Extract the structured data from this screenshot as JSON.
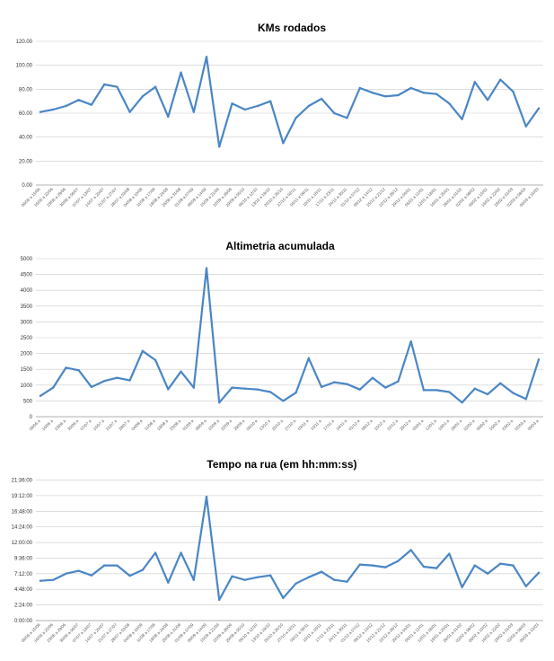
{
  "charts": [
    {
      "type": "line",
      "title": "KMs rodados",
      "y_format": "decimal2",
      "ylim": [
        0,
        120
      ],
      "y_ticks": [
        0,
        20,
        40,
        60,
        80,
        100,
        120
      ],
      "categories": [
        "09/06 a 15/06",
        "16/06 a 22/06",
        "23/06 a 29/06",
        "30/06 a 06/07",
        "07/07 a 13/07",
        "14/07 a 20/07",
        "21/07 a 27/07",
        "28/07 a 03/08",
        "04/08 a 10/08",
        "11/08 a 17/08",
        "18/08 a 24/08",
        "25/08 a 31/08",
        "01/09 a 07/09",
        "08/09 a 14/09",
        "15/09 a 21/09",
        "22/09 a 28/09",
        "29/09 a 05/10",
        "06/10 a 12/10",
        "13/10 a 19/10",
        "20/10 a 26/10",
        "27/10 a 02/11",
        "03/11 a 09/11",
        "10/11 a 16/11",
        "17/11 a 23/11",
        "24/11 a 30/11",
        "01/12 a 07/12",
        "08/12 a 14/12",
        "15/12 a 21/12",
        "22/12 a 28/12",
        "29/12 a 04/01",
        "05/01 a 11/01",
        "12/01 a 18/01",
        "19/01 a 25/01",
        "26/01 a 01/02",
        "02/02 a 08/02",
        "09/02 a 15/02",
        "16/02 a 22/02",
        "23/02 a 01/03",
        "02/03 a 08/03",
        "09/03 a 15/03"
      ],
      "values": [
        61,
        63,
        66,
        71,
        67,
        84,
        82,
        61,
        74,
        82,
        57,
        94,
        61,
        107,
        32,
        68,
        63,
        66,
        70,
        35,
        56,
        66,
        72,
        60,
        56,
        81,
        77,
        74,
        75,
        81,
        77,
        76,
        68,
        55,
        86,
        71,
        88,
        78,
        49,
        64
      ],
      "grid": true,
      "legend": "none",
      "color": "#4a86c5"
    },
    {
      "type": "line",
      "title": "Altimetria acumulada",
      "y_format": "integer",
      "ylim": [
        0,
        5000
      ],
      "y_ticks": [
        0,
        500,
        1000,
        1500,
        2000,
        2500,
        3000,
        3500,
        4000,
        4500,
        5000
      ],
      "categories": [
        "09/06 a",
        "16/06 a",
        "23/06 a",
        "30/06 a",
        "07/07 a",
        "14/07 a",
        "21/07 a",
        "28/07 a",
        "04/08 a",
        "11/08 a",
        "18/08 a",
        "25/08 a",
        "01/09 a",
        "08/09 a",
        "15/09 a",
        "22/09 a",
        "29/09 a",
        "06/10 a",
        "13/10 a",
        "20/10 a",
        "27/10 a",
        "03/11 a",
        "10/11 a",
        "17/11 a",
        "24/11 a",
        "01/12 a",
        "08/12 a",
        "15/12 a",
        "22/12 a",
        "29/12 a",
        "05/01 a",
        "12/01 a",
        "19/01 a",
        "26/01 a",
        "02/02 a",
        "09/02 a",
        "16/02 a",
        "23/02 a",
        "02/03 a",
        "09/03 a"
      ],
      "values": [
        660,
        920,
        1550,
        1470,
        940,
        1130,
        1230,
        1150,
        2080,
        1790,
        870,
        1430,
        920,
        4700,
        450,
        920,
        890,
        860,
        780,
        500,
        760,
        1850,
        940,
        1090,
        1030,
        860,
        1230,
        920,
        1120,
        2380,
        840,
        840,
        780,
        450,
        890,
        710,
        1060,
        750,
        560,
        1810
      ],
      "grid": true,
      "legend": "none",
      "color": "#4a86c5"
    },
    {
      "type": "line",
      "title": "Tempo na rua (em hh:mm:ss)",
      "y_format": "hms",
      "ylim": [
        0,
        78000
      ],
      "y_ticks": [
        0,
        8640,
        17280,
        25920,
        34560,
        43200,
        51840,
        60480,
        69120,
        77760
      ],
      "y_tick_labels": [
        "0:00:00",
        "2:24:00",
        "4:48:00",
        "7:12:00",
        "9:36:00",
        "12:00:00",
        "14:24:00",
        "16:48:00",
        "19:12:00",
        "21:36:00"
      ],
      "categories": [
        "09/06 a 15/06",
        "16/06 a 22/06",
        "23/06 a 29/06",
        "30/06 a 06/07",
        "07/07 a 13/07",
        "14/07 a 20/07",
        "21/07 a 27/07",
        "28/07 a 03/08",
        "04/08 a 10/08",
        "11/08 a 17/08",
        "18/08 a 24/08",
        "25/08 a 31/08",
        "01/09 a 07/09",
        "08/09 a 14/09",
        "15/09 a 21/09",
        "22/09 a 28/09",
        "29/09 a 05/10",
        "06/10 a 12/10",
        "13/10 a 19/10",
        "20/10 a 26/10",
        "27/10 a 02/11",
        "03/11 a 09/11",
        "10/11 a 16/11",
        "17/11 a 23/11",
        "24/11 a 30/11",
        "01/12 a 07/12",
        "08/12 a 14/12",
        "15/12 a 21/12",
        "22/12 a 28/12",
        "29/12 a 04/01",
        "05/01 a 11/01",
        "12/01 a 18/01",
        "19/01 a 25/01",
        "26/01 a 01/02",
        "02/02 a 08/02",
        "09/02 a 15/02",
        "16/02 a 22/02",
        "23/02 a 01/03",
        "02/03 a 08/03",
        "09/03 a 15/03"
      ],
      "values": [
        22000,
        22500,
        26000,
        27500,
        25000,
        30500,
        30500,
        24800,
        28000,
        37500,
        21000,
        37500,
        22500,
        68500,
        11500,
        24500,
        22500,
        24000,
        25000,
        12500,
        20500,
        24000,
        27000,
        22500,
        21500,
        31000,
        30500,
        29500,
        33000,
        39000,
        29800,
        29000,
        37000,
        18500,
        30500,
        26000,
        31500,
        30500,
        19000,
        26500
      ],
      "grid": true,
      "legend": "none",
      "color": "#4a86c5"
    }
  ]
}
